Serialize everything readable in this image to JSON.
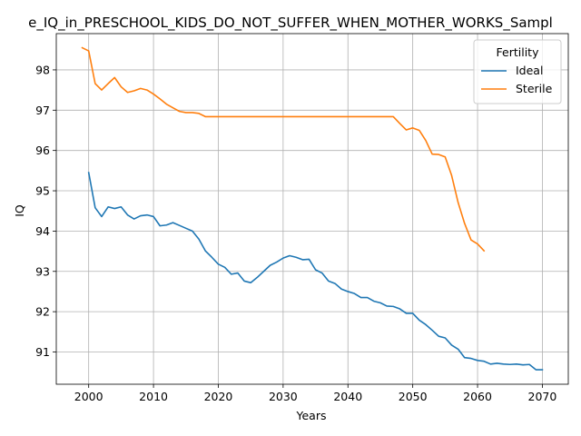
{
  "chart_data": {
    "type": "line",
    "title": "e_IQ_in_PRESCHOOL_KIDS_DO_NOT_SUFFER_WHEN_MOTHER_WORKS_Sampl",
    "xlabel": "Years",
    "ylabel": "IQ",
    "xlim": [
      1995,
      2074
    ],
    "ylim": [
      90.2,
      98.9
    ],
    "xticks": [
      2000,
      2010,
      2020,
      2030,
      2040,
      2050,
      2060,
      2070
    ],
    "xtick_labels": [
      "2000",
      "2010",
      "2020",
      "2030",
      "2040",
      "2050",
      "2060",
      "2070"
    ],
    "yticks": [
      91,
      92,
      93,
      94,
      95,
      96,
      97,
      98
    ],
    "ytick_labels": [
      "91",
      "92",
      "93",
      "94",
      "95",
      "96",
      "97",
      "98"
    ],
    "grid": true,
    "legend": {
      "title": "Fertility",
      "placement": "top-right"
    },
    "series": [
      {
        "name": "Ideal",
        "color": "#1f77b4",
        "x": [
          2000,
          2001,
          2002,
          2003,
          2004,
          2005,
          2006,
          2007,
          2008,
          2009,
          2010,
          2011,
          2012,
          2013,
          2014,
          2015,
          2016,
          2017,
          2018,
          2019,
          2020,
          2021,
          2022,
          2023,
          2024,
          2025,
          2026,
          2027,
          2028,
          2029,
          2030,
          2031,
          2032,
          2033,
          2034,
          2035,
          2036,
          2037,
          2038,
          2039,
          2040,
          2041,
          2042,
          2043,
          2044,
          2045,
          2046,
          2047,
          2048,
          2049,
          2050,
          2051,
          2052,
          2053,
          2054,
          2055,
          2056,
          2057,
          2058,
          2059,
          2060,
          2061,
          2062,
          2063,
          2064,
          2065,
          2066,
          2067,
          2068,
          2069,
          2070
        ],
        "values": [
          95.45,
          94.58,
          94.36,
          94.6,
          94.56,
          94.6,
          94.4,
          94.3,
          94.38,
          94.4,
          94.36,
          94.13,
          94.15,
          94.21,
          94.14,
          94.07,
          94.0,
          93.8,
          93.51,
          93.35,
          93.18,
          93.1,
          92.93,
          92.96,
          92.76,
          92.72,
          92.85,
          93.0,
          93.15,
          93.23,
          93.33,
          93.39,
          93.35,
          93.29,
          93.3,
          93.04,
          92.96,
          92.76,
          92.7,
          92.56,
          92.5,
          92.45,
          92.35,
          92.35,
          92.26,
          92.22,
          92.14,
          92.13,
          92.07,
          91.96,
          91.96,
          91.79,
          91.68,
          91.54,
          91.39,
          91.35,
          91.17,
          91.07,
          90.86,
          90.84,
          90.79,
          90.77,
          90.7,
          90.72,
          90.7,
          90.69,
          90.7,
          90.68,
          90.69,
          90.56,
          90.56
        ]
      },
      {
        "name": "Sterile",
        "color": "#ff7f0e",
        "x": [
          1999,
          2000,
          2001,
          2002,
          2003,
          2004,
          2005,
          2006,
          2007,
          2008,
          2009,
          2010,
          2011,
          2012,
          2013,
          2014,
          2015,
          2016,
          2017,
          2018,
          2019,
          2020,
          2025,
          2030,
          2035,
          2040,
          2045,
          2047,
          2048,
          2049,
          2050,
          2051,
          2052,
          2053,
          2054,
          2055,
          2056,
          2057,
          2058,
          2059,
          2060,
          2061
        ],
        "values": [
          98.55,
          98.47,
          97.66,
          97.5,
          97.66,
          97.81,
          97.58,
          97.44,
          97.48,
          97.54,
          97.5,
          97.4,
          97.28,
          97.15,
          97.06,
          96.97,
          96.94,
          96.94,
          96.92,
          96.84,
          96.84,
          96.84,
          96.84,
          96.84,
          96.84,
          96.84,
          96.84,
          96.84,
          96.67,
          96.51,
          96.56,
          96.5,
          96.25,
          95.91,
          95.9,
          95.84,
          95.38,
          94.71,
          94.19,
          93.78,
          93.68,
          93.51
        ]
      }
    ]
  }
}
